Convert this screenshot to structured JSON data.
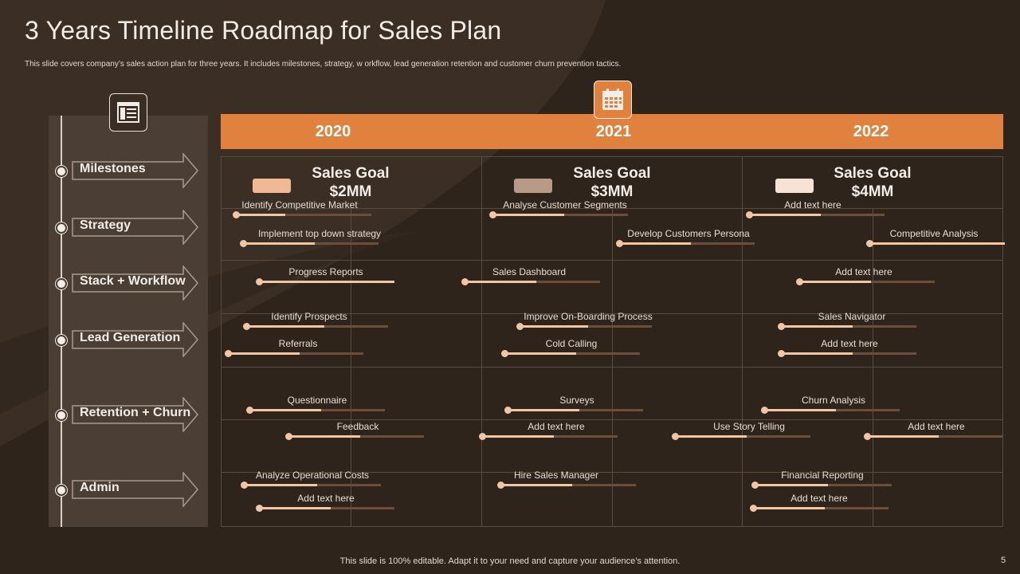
{
  "slide": {
    "title": "3 Years Timeline Roadmap for Sales Plan",
    "subtitle": "This slide covers company’s sales action plan for three years. It includes milestones, strategy, w orkflow, lead generation retention and customer churn prevention tactics.",
    "footer": "This slide is 100% editable. Adapt it to your need and capture your audience’s attention.",
    "page_number": "5"
  },
  "icons": {
    "side": "table-icon",
    "header": "calendar-icon"
  },
  "colors": {
    "background": "#2f241c",
    "accent": "#e0823e",
    "panel": "#4a3e35",
    "bar_fill": "#f2c6a3",
    "bar_track": "#6a4f3c"
  },
  "rows": [
    {
      "label": "Milestones"
    },
    {
      "label": "Strategy"
    },
    {
      "label": "Stack + Workflow"
    },
    {
      "label": "Lead Generation"
    },
    {
      "label": "Retention + Churn"
    },
    {
      "label": "Admin"
    }
  ],
  "years": [
    "2020",
    "2021",
    "2022"
  ],
  "goals": [
    {
      "title": "Sales Goal",
      "amount": "$2MM",
      "color": "#f0b894"
    },
    {
      "title": "Sales Goal",
      "amount": "$3MM",
      "color": "#b89a86"
    },
    {
      "title": "Sales Goal",
      "amount": "$4MM",
      "color": "#f6e3d6"
    }
  ],
  "tasks": [
    "Identify Competitive Market",
    "Analyse Customer Segments",
    "Add text here",
    "Implement top down strategy",
    "Develop Customers Persona",
    "Competitive Analysis",
    "Progress Reports",
    "Sales Dashboard",
    "Add text here",
    "Identify Prospects",
    "Improve On-Boarding Process",
    "Sales Navigator",
    "Referrals",
    "Cold Calling",
    "Add text here",
    "Questionnaire",
    "Surveys",
    "Churn Analysis",
    "Feedback",
    "Add text here",
    "Use Story Telling",
    "Add text here",
    "Analyze  Operational Costs",
    "Hire Sales Manager",
    "Financial Reporting",
    "Add text here",
    "Add text here"
  ]
}
